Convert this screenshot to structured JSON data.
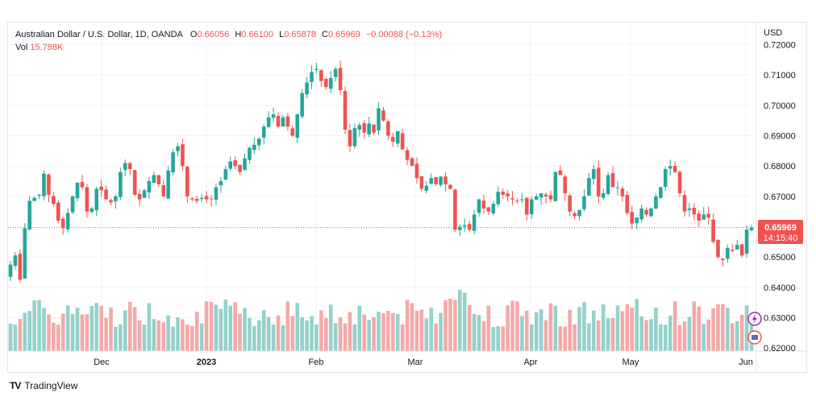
{
  "legend": {
    "symbol": "Australian Dollar / U.S. Dollar, 1D, OANDA",
    "open_label": "O",
    "open": "0.66056",
    "high_label": "H",
    "high": "0.66100",
    "low_label": "L",
    "low": "0.65878",
    "close_label": "C",
    "close": "0.65969",
    "change": "−0.00088 (−0.13%)",
    "vol_label": "Vol",
    "vol": "15.788K"
  },
  "price_axis": {
    "currency": "USD",
    "ticks": [
      "0.72000",
      "0.71000",
      "0.70000",
      "0.69000",
      "0.68000",
      "0.67000",
      "0.65000",
      "0.64000",
      "0.63000",
      "0.62000"
    ],
    "current_price": "0.65969",
    "countdown": "14:15:40"
  },
  "time_axis": {
    "labels": [
      "Dec",
      "2023",
      "Feb",
      "Mar",
      "Apr",
      "May",
      "Jun"
    ]
  },
  "branding": {
    "text": "TradingView"
  },
  "colors": {
    "up": "#26a69a",
    "down": "#ef5350",
    "up_vol": "#94d1cb",
    "down_vol": "#f4a9a8",
    "grid": "#f0f3fa"
  },
  "chart_data": {
    "type": "candlestick",
    "title": "Australian Dollar / U.S. Dollar, 1D, OANDA",
    "y_unit": "USD",
    "ylim": [
      0.619,
      0.7225
    ],
    "ohlc_close_series": [
      0.6475,
      0.6505,
      0.6425,
      0.6595,
      0.6685,
      0.6695,
      0.6705,
      0.6775,
      0.6705,
      0.6675,
      0.662,
      0.6595,
      0.6645,
      0.67,
      0.6745,
      0.673,
      0.665,
      0.666,
      0.6725,
      0.672,
      0.669,
      0.668,
      0.67,
      0.678,
      0.681,
      0.679,
      0.6705,
      0.669,
      0.672,
      0.675,
      0.677,
      0.674,
      0.67,
      0.6785,
      0.6845,
      0.6865,
      0.68,
      0.67,
      0.669,
      0.6685,
      0.6695,
      0.669,
      0.669,
      0.673,
      0.675,
      0.679,
      0.6815,
      0.68,
      0.678,
      0.6825,
      0.686,
      0.687,
      0.689,
      0.693,
      0.696,
      0.697,
      0.693,
      0.696,
      0.693,
      0.69,
      0.697,
      0.704,
      0.7075,
      0.711,
      0.712,
      0.708,
      0.706,
      0.709,
      0.712,
      0.705,
      0.692,
      0.6865,
      0.6925,
      0.6935,
      0.691,
      0.694,
      0.691,
      0.699,
      0.695,
      0.69,
      0.688,
      0.6915,
      0.6855,
      0.682,
      0.68,
      0.676,
      0.6725,
      0.6735,
      0.676,
      0.674,
      0.6765,
      0.674,
      0.6725,
      0.659,
      0.66,
      0.6605,
      0.659,
      0.664,
      0.669,
      0.666,
      0.665,
      0.6675,
      0.6715,
      0.6705,
      0.67,
      0.669,
      0.6685,
      0.669,
      0.664,
      0.669,
      0.67,
      0.671,
      0.67,
      0.669,
      0.678,
      0.677,
      0.671,
      0.665,
      0.6635,
      0.6655,
      0.67,
      0.676,
      0.679,
      0.67,
      0.671,
      0.677,
      0.673,
      0.673,
      0.67,
      0.6645,
      0.661,
      0.663,
      0.666,
      0.664,
      0.666,
      0.67,
      0.673,
      0.679,
      0.68,
      0.678,
      0.671,
      0.665,
      0.666,
      0.664,
      0.662,
      0.664,
      0.663,
      0.655,
      0.65,
      0.649,
      0.653,
      0.652,
      0.654,
      0.6505,
      0.659,
      0.6597
    ]
  }
}
